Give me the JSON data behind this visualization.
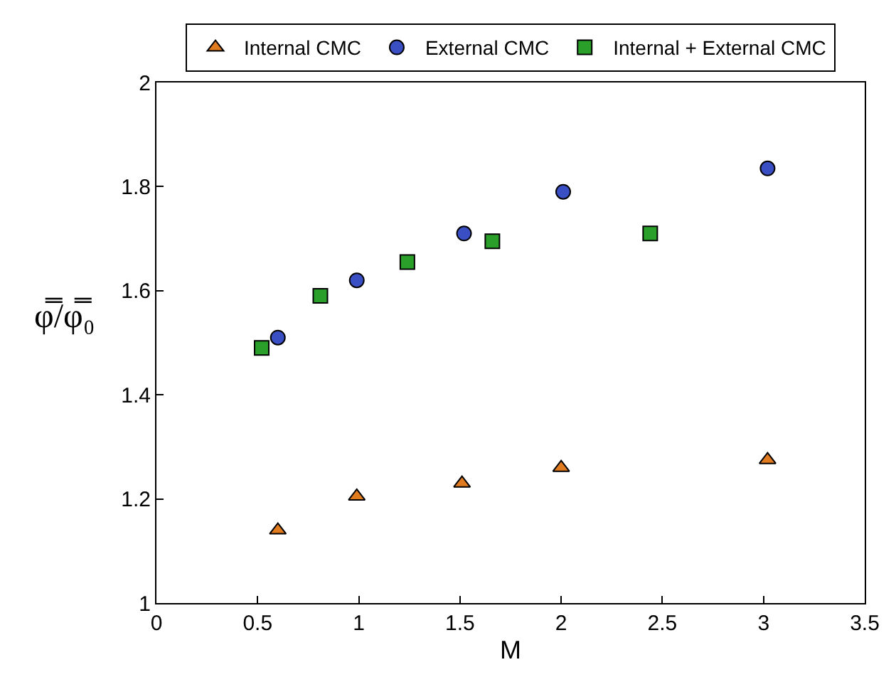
{
  "chart_data": {
    "type": "scatter",
    "xlabel": "M",
    "ylabel": "φ̿/φ̿₀",
    "xlim": [
      0,
      3.5
    ],
    "xticks": [
      0,
      0.5,
      1,
      1.5,
      2,
      2.5,
      3,
      3.5
    ],
    "ylim": [
      1,
      2
    ],
    "yticks": [
      1,
      1.2,
      1.4,
      1.6,
      1.8,
      2
    ],
    "legend": "top",
    "series": [
      {
        "name": "Internal CMC",
        "color": "#e07b20",
        "marker": "triangle",
        "x": [
          0.6,
          0.99,
          1.51,
          2.0,
          3.02
        ],
        "values": [
          1.14,
          1.205,
          1.23,
          1.26,
          1.275
        ]
      },
      {
        "name": "External CMC",
        "color": "#3a4fc4",
        "marker": "circle",
        "x": [
          0.6,
          0.99,
          1.52,
          2.01,
          3.02
        ],
        "values": [
          1.51,
          1.62,
          1.71,
          1.79,
          1.835
        ]
      },
      {
        "name": "Internal + External CMC",
        "color": "#2aa02a",
        "marker": "square",
        "x": [
          0.52,
          0.81,
          1.24,
          1.66,
          2.44
        ],
        "values": [
          1.49,
          1.59,
          1.655,
          1.695,
          1.71
        ]
      }
    ]
  }
}
